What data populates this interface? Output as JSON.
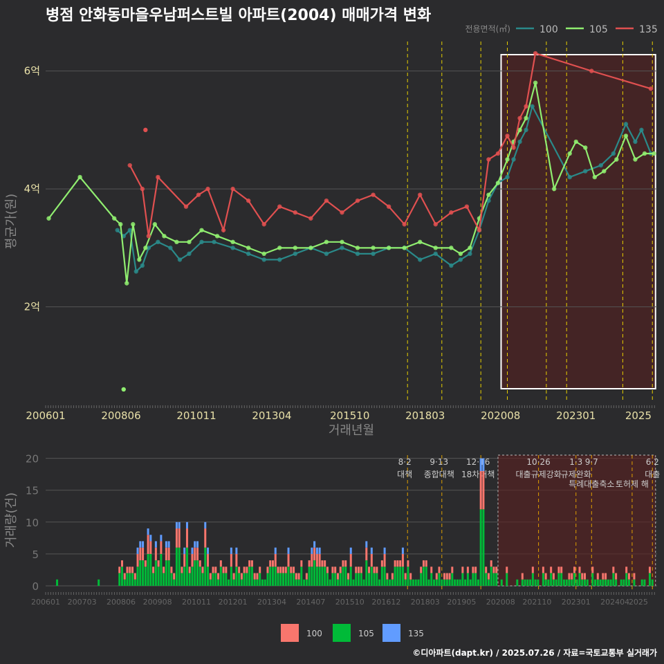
{
  "title": "병점 안화동마을우남퍼스트빌 아파트(2004) 매매가격 변화",
  "credit": "©디아파트(dapt.kr) / 2025.07.26 / 자료=국토교통부 실거래가",
  "colors": {
    "s100": "#2a8a8a",
    "s105": "#90ee70",
    "s135": "#e05050",
    "bar100": "#f8766d",
    "bar105": "#00ba38",
    "bar135": "#619cff",
    "policy": "#e8d000",
    "policy2": "#e0a000"
  },
  "chart_data": [
    {
      "type": "line",
      "title": "병점 안화동마을우남퍼스트빌 아파트(2004) 매매가격 변화",
      "xlabel": "거래년월",
      "ylabel": "평균가(원)",
      "legend_title": "전용면적(㎡)",
      "legend": [
        "100",
        "105",
        "135"
      ],
      "x_ticks": [
        "200601",
        "200806",
        "201011",
        "201304",
        "201510",
        "201803",
        "202008",
        "202301",
        "2025"
      ],
      "y_ticks": [
        {
          "v": 2,
          "label": "2억"
        },
        {
          "v": 4,
          "label": "4억"
        },
        {
          "v": 6,
          "label": "6억"
        }
      ],
      "ylim": [
        0.4,
        6.5
      ],
      "xlim": [
        2006.0,
        2025.6
      ],
      "policy_lines": [
        2017.6,
        2018.7,
        2019.95,
        2020.8,
        2022.05,
        2022.7,
        2024.5,
        2025.45
      ],
      "highlight_range": [
        2020.6,
        2025.55
      ],
      "series": [
        {
          "name": "100",
          "x": [
            2008.3,
            2008.5,
            2008.7,
            2008.9,
            2009.1,
            2009.3,
            2009.6,
            2010.0,
            2010.3,
            2010.6,
            2011.0,
            2011.4,
            2012.0,
            2012.5,
            2013.0,
            2013.5,
            2014.0,
            2014.5,
            2015.0,
            2015.5,
            2016.0,
            2016.5,
            2017.0,
            2017.5,
            2018.0,
            2018.5,
            2019.0,
            2019.3,
            2019.6,
            2019.9,
            2020.2,
            2020.5,
            2020.8,
            2021.0,
            2021.2,
            2021.4,
            2021.6,
            2022.8,
            2023.3,
            2023.8,
            2024.2,
            2024.6,
            2024.9,
            2025.1,
            2025.4
          ],
          "y": [
            3.3,
            3.2,
            3.3,
            2.6,
            2.7,
            3.0,
            3.1,
            3.0,
            2.8,
            2.9,
            3.1,
            3.1,
            3.0,
            2.9,
            2.8,
            2.8,
            2.9,
            3.0,
            2.9,
            3.0,
            2.9,
            2.9,
            3.0,
            3.0,
            2.8,
            2.9,
            2.7,
            2.8,
            2.9,
            3.3,
            3.8,
            4.1,
            4.2,
            4.5,
            4.8,
            5.0,
            5.4,
            4.2,
            4.3,
            4.4,
            4.6,
            5.1,
            4.8,
            5.0,
            4.6
          ]
        },
        {
          "name": "105",
          "x": [
            2006.1,
            2007.1,
            2008.2,
            2008.4,
            2008.6,
            2008.8,
            2009.0,
            2009.2,
            2009.5,
            2009.8,
            2010.2,
            2010.6,
            2011.0,
            2011.5,
            2012.0,
            2012.5,
            2013.0,
            2013.5,
            2014.0,
            2014.5,
            2015.0,
            2015.5,
            2016.0,
            2016.5,
            2017.0,
            2017.5,
            2018.0,
            2018.5,
            2019.0,
            2019.3,
            2019.6,
            2019.9,
            2020.2,
            2020.5,
            2020.8,
            2021.0,
            2021.2,
            2021.4,
            2021.7,
            2022.3,
            2022.8,
            2023.0,
            2023.3,
            2023.6,
            2023.9,
            2024.3,
            2024.6,
            2024.9,
            2025.2,
            2025.5
          ],
          "y": [
            3.5,
            4.2,
            3.5,
            3.4,
            2.4,
            3.4,
            2.8,
            3.0,
            3.4,
            3.2,
            3.1,
            3.1,
            3.3,
            3.2,
            3.1,
            3.0,
            2.9,
            3.0,
            3.0,
            3.0,
            3.1,
            3.1,
            3.0,
            3.0,
            3.0,
            3.0,
            3.1,
            3.0,
            3.0,
            2.9,
            3.0,
            3.5,
            3.9,
            4.1,
            4.5,
            4.8,
            5.0,
            5.2,
            5.8,
            4.0,
            4.6,
            4.8,
            4.7,
            4.2,
            4.3,
            4.5,
            4.9,
            4.5,
            4.6,
            4.6
          ]
        },
        {
          "name": "135",
          "x": [
            2008.7,
            2009.1,
            2009.3,
            2009.6,
            2010.5,
            2010.9,
            2011.2,
            2011.7,
            2012.0,
            2012.5,
            2013.0,
            2013.5,
            2014.0,
            2014.5,
            2015.0,
            2015.5,
            2016.0,
            2016.5,
            2017.0,
            2017.5,
            2018.0,
            2018.5,
            2019.0,
            2019.5,
            2019.9,
            2020.2,
            2020.5,
            2020.8,
            2021.0,
            2021.2,
            2021.4,
            2021.7,
            2023.5,
            2025.4
          ],
          "y": [
            4.4,
            4.0,
            3.2,
            4.2,
            3.7,
            3.9,
            4.0,
            3.3,
            4.0,
            3.8,
            3.4,
            3.7,
            3.6,
            3.5,
            3.8,
            3.6,
            3.8,
            3.9,
            3.7,
            3.4,
            3.9,
            3.4,
            3.6,
            3.7,
            3.3,
            4.5,
            4.6,
            4.9,
            4.7,
            5.2,
            5.4,
            6.3,
            6.0,
            5.7
          ]
        }
      ]
    },
    {
      "type": "bar",
      "xlabel": "",
      "ylabel": "거래량(건)",
      "legend": [
        "100",
        "105",
        "135"
      ],
      "x_ticks": [
        "200601",
        "200703",
        "200806",
        "200908",
        "201011",
        "201201",
        "201304",
        "201407",
        "201510",
        "201612",
        "201803",
        "201905",
        "202008",
        "202110",
        "202301",
        "202404",
        "2025"
      ],
      "y_ticks": [
        0,
        5,
        10,
        15,
        20
      ],
      "ylim": [
        0,
        20.5
      ],
      "policy_labels": [
        {
          "x": 2017.6,
          "date": "8·2",
          "text": "대책"
        },
        {
          "x": 2018.7,
          "date": "9·13",
          "text": "종합대책"
        },
        {
          "x": 2019.95,
          "date": "12·16",
          "text": "18차대책"
        },
        {
          "x": 2021.8,
          "date": "10·26",
          "text": "대출규제강화"
        },
        {
          "x": 2023.0,
          "date": "1·3",
          "text": "규제완화"
        },
        {
          "x": 2023.5,
          "date": "9·7",
          "text": "특례대출축소"
        },
        {
          "x": 2024.8,
          "date": "",
          "text": "토허제 해"
        },
        {
          "x": 2025.45,
          "date": "6·2",
          "text": "대출"
        }
      ],
      "series_note": "monthly transaction counts per area (estimated)"
    }
  ]
}
